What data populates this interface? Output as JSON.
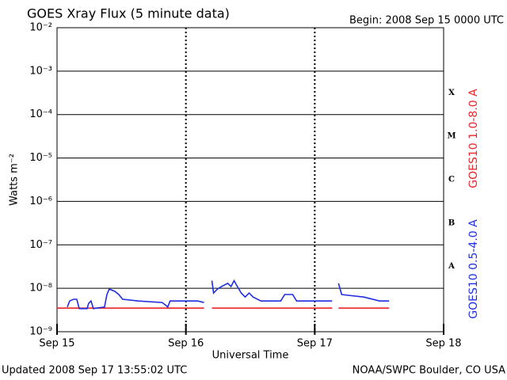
{
  "chart_data": {
    "type": "line",
    "title": "GOES Xray Flux (5 minute data)",
    "subtitle": "Begin:  2008 Sep 15 0000 UTC",
    "y_label": "Watts m⁻²",
    "x_label": "Universal Time",
    "updated": "Updated 2008 Sep 17 13:55:02 UTC",
    "credit": "NOAA/SWPC Boulder, CO USA",
    "log_y": true,
    "grid": true,
    "legend": "right",
    "xlim": [
      0,
      3
    ],
    "xticks": [
      {
        "value": 0,
        "label": "Sep 15"
      },
      {
        "value": 1,
        "label": "Sep 16"
      },
      {
        "value": 2,
        "label": "Sep 17"
      },
      {
        "value": 3,
        "label": "Sep 18"
      }
    ],
    "ylim": [
      1e-09,
      0.01
    ],
    "yticks": [
      {
        "value": 1e-09,
        "label": "10⁻⁹"
      },
      {
        "value": 1e-08,
        "label": "10⁻⁸"
      },
      {
        "value": 1e-07,
        "label": "10⁻⁷"
      },
      {
        "value": 1e-06,
        "label": "10⁻⁶"
      },
      {
        "value": 1e-05,
        "label": "10⁻⁵"
      },
      {
        "value": 0.0001,
        "label": "10⁻⁴"
      },
      {
        "value": 0.001,
        "label": "10⁻³"
      },
      {
        "value": 0.01,
        "label": "10⁻²"
      }
    ],
    "flare_classes": [
      "X",
      "M",
      "C",
      "B",
      "A"
    ],
    "series": [
      {
        "name": "GOES10 1.0-8.0 A",
        "color": "#e8262a",
        "x": [
          0,
          1.141,
          1.17,
          1.202,
          2.135,
          2.16,
          2.184,
          2.577
        ],
        "values": [
          3.5e-09,
          3.5e-09,
          null,
          3.5e-09,
          3.5e-09,
          null,
          3.5e-09,
          3.5e-09
        ]
      },
      {
        "name": "GOES10 0.5-4.0 A",
        "color": "#1f2fe0",
        "x": [
          0.08,
          0.098,
          0.129,
          0.153,
          0.172,
          0.233,
          0.245,
          0.264,
          0.282,
          0.368,
          0.387,
          0.405,
          0.448,
          0.479,
          0.509,
          0.632,
          0.816,
          0.847,
          0.859,
          0.877,
          1.092,
          1.141,
          1.17,
          1.202,
          1.215,
          1.245,
          1.276,
          1.325,
          1.35,
          1.374,
          1.399,
          1.429,
          1.46,
          1.491,
          1.521,
          1.583,
          1.736,
          1.767,
          1.828,
          1.859,
          2.135,
          2.16,
          2.184,
          2.209,
          2.258,
          2.38,
          2.503,
          2.577
        ],
        "values": [
          3.7e-09,
          5.1e-09,
          5.6e-09,
          5.6e-09,
          3.4e-09,
          3.4e-09,
          4.5e-09,
          5.1e-09,
          3.4e-09,
          3.7e-09,
          7.2e-09,
          9.6e-09,
          8.5e-09,
          7.2e-09,
          5.6e-09,
          5.1e-09,
          4.7e-09,
          4e-09,
          3.7e-09,
          5.1e-09,
          5.1e-09,
          4.7e-09,
          null,
          1.5e-08,
          7.8e-09,
          9.6e-09,
          1.1e-08,
          1.3e-08,
          1.1e-08,
          1.5e-08,
          1.1e-08,
          7.8e-09,
          6.3e-09,
          7.8e-09,
          6.3e-09,
          5.1e-09,
          5.1e-09,
          7.2e-09,
          7.2e-09,
          5.1e-09,
          5.1e-09,
          null,
          1.3e-08,
          7.2e-09,
          6.9e-09,
          6.3e-09,
          5.1e-09,
          5.1e-09
        ]
      }
    ]
  }
}
